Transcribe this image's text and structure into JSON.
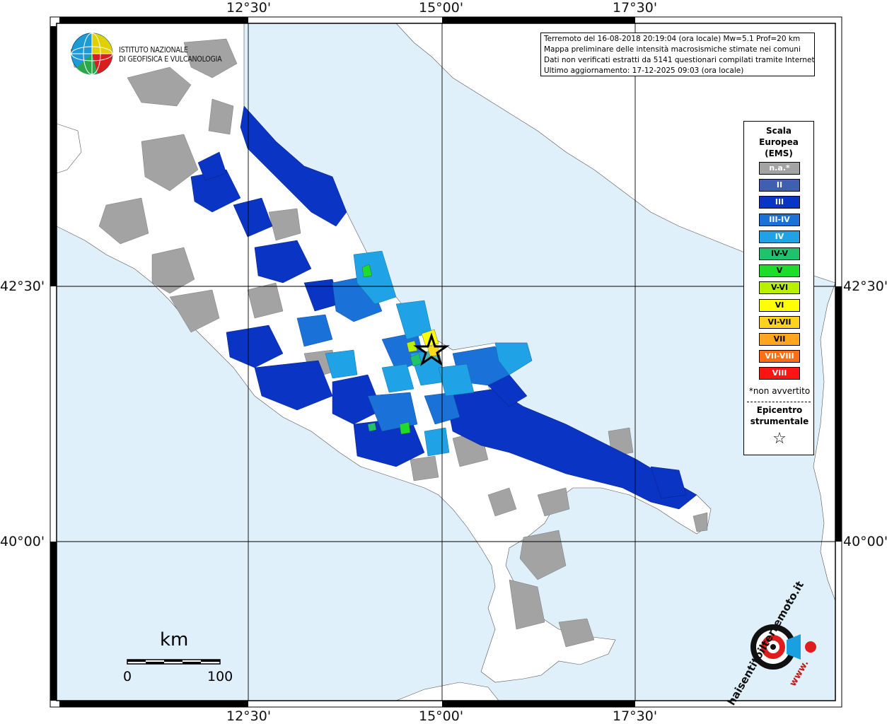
{
  "frame": {
    "lon_labels_top": [
      "12°30'",
      "15°00'",
      "17°30'"
    ],
    "lon_labels_bottom": [
      "12°30'",
      "15°00'",
      "17°30'"
    ],
    "lat_labels_left": [
      "42°30'",
      "40°00'"
    ],
    "lat_labels_right": [
      "42°30'",
      "40°00'"
    ]
  },
  "colors": {
    "sea": "#dff0fb",
    "land": "#ffffff",
    "not_assessed": "#a3a3a3",
    "II": "#3f5fb0",
    "III": "#0a35c4",
    "III-IV": "#1a72d8",
    "IV": "#1fa3e6",
    "IV-V": "#20c36b",
    "V": "#1fdc2a",
    "V-VI": "#b8f000",
    "VI": "#ffff00",
    "VI-VII": "#ffd21e",
    "VII": "#ffa51e",
    "VII-VIII": "#ff6e14",
    "VIII": "#ff1414"
  },
  "logo": {
    "line1": "ISTITUTO NAZIONALE",
    "line2": "DI GEOFISICA E VULCANOLOGIA"
  },
  "info": {
    "line1": "Terremoto del 16-08-2018 20:19:04 (ora locale) Mw=5.1 Prof=20 km",
    "line2": "Mappa preliminare delle intensità macrosismiche stimate nei comuni",
    "line3": "Dati non verificati estratti da 5141 questionari compilati tramite Internet.",
    "line4": "Ultimo aggiornamento: 17-12-2025 09:03 (ora locale)"
  },
  "legend": {
    "title_1": "Scala",
    "title_2": "Europea",
    "title_3": "(EMS)",
    "items": [
      {
        "label": "n.a.*",
        "color": "#a3a3a3",
        "text_color": "#ffffff"
      },
      {
        "label": "II",
        "color": "#3f5fb0",
        "text_color": "#ffffff"
      },
      {
        "label": "III",
        "color": "#0a35c4",
        "text_color": "#ffffff"
      },
      {
        "label": "III-IV",
        "color": "#1a72d8",
        "text_color": "#ffffff"
      },
      {
        "label": "IV",
        "color": "#1fa3e6",
        "text_color": "#ffffff"
      },
      {
        "label": "IV-V",
        "color": "#20c36b",
        "text_color": "#000000"
      },
      {
        "label": "V",
        "color": "#1fdc2a",
        "text_color": "#000000"
      },
      {
        "label": "V-VI",
        "color": "#b8f000",
        "text_color": "#000000"
      },
      {
        "label": "VI",
        "color": "#ffff00",
        "text_color": "#000000"
      },
      {
        "label": "VI-VII",
        "color": "#ffd21e",
        "text_color": "#000000"
      },
      {
        "label": "VII",
        "color": "#ffa51e",
        "text_color": "#000000"
      },
      {
        "label": "VII-VIII",
        "color": "#ff6e14",
        "text_color": "#ffffff"
      },
      {
        "label": "VIII",
        "color": "#ff1414",
        "text_color": "#ffffff"
      }
    ],
    "note": "*non avvertito",
    "epicenter_1": "Epicentro",
    "epicenter_2": "strumentale",
    "star_glyph": "☆"
  },
  "scale_bar": {
    "unit": "km",
    "start_label": "0",
    "end_label": "100"
  },
  "watermark": {
    "text_top": "haisentitoilterremoto.it",
    "text_bottom": "www."
  }
}
